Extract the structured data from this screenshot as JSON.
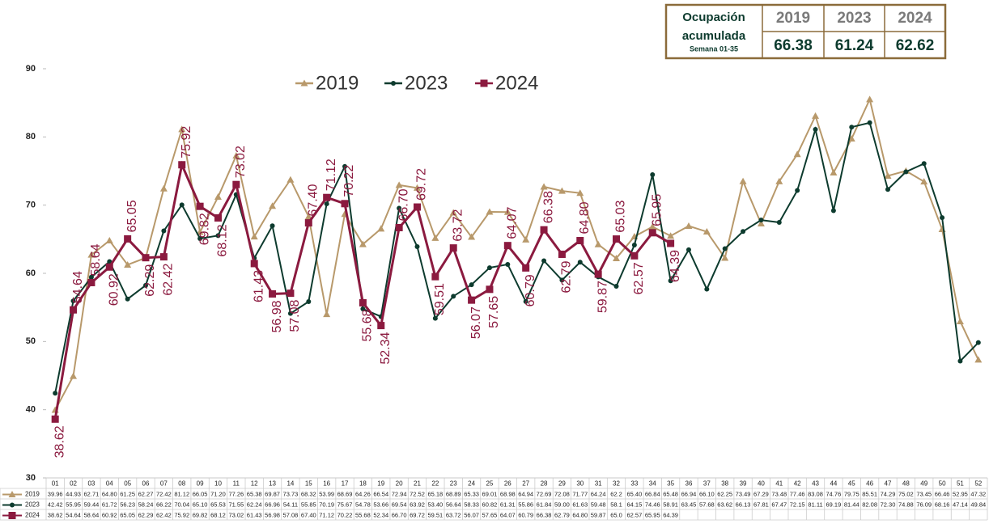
{
  "chart_data": {
    "type": "line",
    "summary": {
      "title_1": "Ocupación",
      "title_2": "acumulada",
      "subtitle": "Semana 01-35",
      "years": [
        "2019",
        "2023",
        "2024"
      ],
      "values": [
        66.38,
        61.24,
        62.62
      ]
    },
    "categories": [
      "01",
      "02",
      "03",
      "04",
      "05",
      "06",
      "07",
      "08",
      "09",
      "10",
      "11",
      "12",
      "13",
      "14",
      "15",
      "16",
      "17",
      "18",
      "19",
      "20",
      "21",
      "22",
      "23",
      "24",
      "25",
      "26",
      "27",
      "28",
      "29",
      "30",
      "31",
      "32",
      "33",
      "34",
      "35",
      "36",
      "37",
      "38",
      "39",
      "40",
      "41",
      "42",
      "43",
      "44",
      "45",
      "46",
      "47",
      "48",
      "49",
      "50",
      "51",
      "52"
    ],
    "ylim": [
      30,
      90
    ],
    "yticks": [
      30,
      40,
      50,
      60,
      70,
      80,
      90
    ],
    "series": [
      {
        "name": "2019",
        "color": "#b8996b",
        "marker": "triangle",
        "values": [
          39.96,
          44.93,
          62.71,
          64.8,
          61.25,
          62.27,
          72.42,
          81.12,
          66.05,
          71.2,
          77.26,
          65.38,
          69.87,
          73.73,
          68.32,
          53.99,
          68.69,
          64.26,
          66.54,
          72.94,
          72.52,
          65.18,
          68.89,
          65.33,
          69.01,
          68.98,
          64.94,
          72.69,
          72.08,
          71.77,
          64.24,
          62.2,
          65.4,
          66.84,
          65.48,
          66.94,
          66.1,
          62.25,
          73.49,
          67.29,
          73.48,
          77.46,
          83.08,
          74.76,
          79.75,
          85.51,
          74.29,
          75.02,
          73.45,
          66.46,
          52.95,
          47.32
        ],
        "table_labels": [
          "39.96",
          "44.93",
          "62.71",
          "64.80",
          "61.25",
          "62.27",
          "72.42",
          "81.12",
          "66.05",
          "71.20",
          "77.26",
          "65.38",
          "69.87",
          "73.73",
          "68.32",
          "53.99",
          "68.69",
          "64.26",
          "66.54",
          "72.94",
          "72.52",
          "65.18",
          "68.89",
          "65.33",
          "69.01",
          "68.98",
          "64.94",
          "72.69",
          "72.08",
          "71.77",
          "64.24",
          "62.2",
          "65.40",
          "66.84",
          "65.48",
          "66.94",
          "66.10",
          "62.25",
          "73.49",
          "67.29",
          "73.48",
          "77.46",
          "83.08",
          "74.76",
          "79.75",
          "85.51",
          "74.29",
          "75.02",
          "73.45",
          "66.46",
          "52.95",
          "47.32"
        ]
      },
      {
        "name": "2023",
        "color": "#0d3b2e",
        "marker": "circle",
        "values": [
          42.42,
          55.95,
          59.44,
          61.72,
          56.23,
          58.24,
          66.22,
          70.04,
          65.1,
          65.53,
          71.55,
          62.24,
          66.96,
          54.11,
          55.85,
          70.19,
          75.67,
          54.78,
          53.66,
          69.54,
          63.92,
          53.4,
          56.64,
          58.33,
          60.82,
          61.31,
          55.86,
          61.84,
          59.0,
          61.63,
          59.48,
          58.1,
          64.15,
          74.46,
          58.91,
          63.45,
          57.68,
          63.62,
          66.13,
          67.81,
          67.47,
          72.15,
          81.11,
          69.19,
          81.44,
          82.08,
          72.3,
          74.88,
          76.09,
          68.16,
          47.14,
          49.84
        ],
        "table_labels": [
          "42.42",
          "55.95",
          "59.44",
          "61.72",
          "56.23",
          "58.24",
          "66.22",
          "70.04",
          "65.10",
          "65.53",
          "71.55",
          "62.24",
          "66.96",
          "54.11",
          "55.85",
          "70.19",
          "75.67",
          "54.78",
          "53.66",
          "69.54",
          "63.92",
          "53.40",
          "56.64",
          "58.33",
          "60.82",
          "61.31",
          "55.86",
          "61.84",
          "59.00",
          "61.63",
          "59.48",
          "58.1",
          "64.15",
          "74.46",
          "58.91",
          "63.45",
          "57.68",
          "63.62",
          "66.13",
          "67.81",
          "67.47",
          "72.15",
          "81.11",
          "69.19",
          "81.44",
          "82.08",
          "72.30",
          "74.88",
          "76.09",
          "68.16",
          "47.14",
          "49.84"
        ]
      },
      {
        "name": "2024",
        "color": "#8b1a3f",
        "marker": "square",
        "values": [
          38.62,
          54.64,
          58.64,
          60.92,
          65.05,
          62.29,
          62.42,
          75.92,
          69.82,
          68.12,
          73.02,
          61.43,
          56.98,
          57.08,
          67.4,
          71.12,
          70.22,
          55.68,
          52.34,
          66.7,
          69.72,
          59.51,
          63.72,
          56.07,
          57.65,
          64.07,
          60.79,
          66.38,
          62.79,
          64.8,
          59.87,
          65.03,
          62.57,
          65.95,
          64.39,
          null,
          null,
          null,
          null,
          null,
          null,
          null,
          null,
          null,
          null,
          null,
          null,
          null,
          null,
          null,
          null,
          null
        ],
        "value_labels": [
          "38.62",
          "54.64",
          "58.64",
          "60.92",
          "65.05",
          "62.29",
          "62.42",
          "75.92",
          "69.82",
          "68.12",
          "73.02",
          "61.43",
          "56.98",
          "57.08",
          "67.40",
          "71.12",
          "70.22",
          "55.68",
          "52.34",
          "66.70",
          "69.72",
          "59.51",
          "63.72",
          "56.07",
          "57.65",
          "64.07",
          "60.79",
          "66.38",
          "62.79",
          "64.80",
          "59.87",
          "65.03",
          "62.57",
          "65.95",
          "64.39",
          null,
          null,
          null,
          null,
          null,
          null,
          null,
          null,
          null,
          null,
          null,
          null,
          null,
          null,
          null,
          null,
          null
        ],
        "table_labels": [
          "38.62",
          "54.64",
          "58.64",
          "60.92",
          "65.05",
          "62.29",
          "62.42",
          "75.92",
          "69.82",
          "68.12",
          "73.02",
          "61.43",
          "56.98",
          "57.08",
          "67.40",
          "71.12",
          "70.22",
          "55.68",
          "52.34",
          "66.70",
          "69.72",
          "59.51",
          "63.72",
          "56.07",
          "57.65",
          "64.07",
          "60.79",
          "66.38",
          "62.79",
          "64.80",
          "59.87",
          "65.0",
          "62.57",
          "65.95",
          "64.39",
          null,
          null,
          null,
          null,
          null,
          null,
          null,
          null,
          null,
          null,
          null,
          null,
          null,
          null,
          null,
          null,
          null
        ]
      }
    ]
  }
}
